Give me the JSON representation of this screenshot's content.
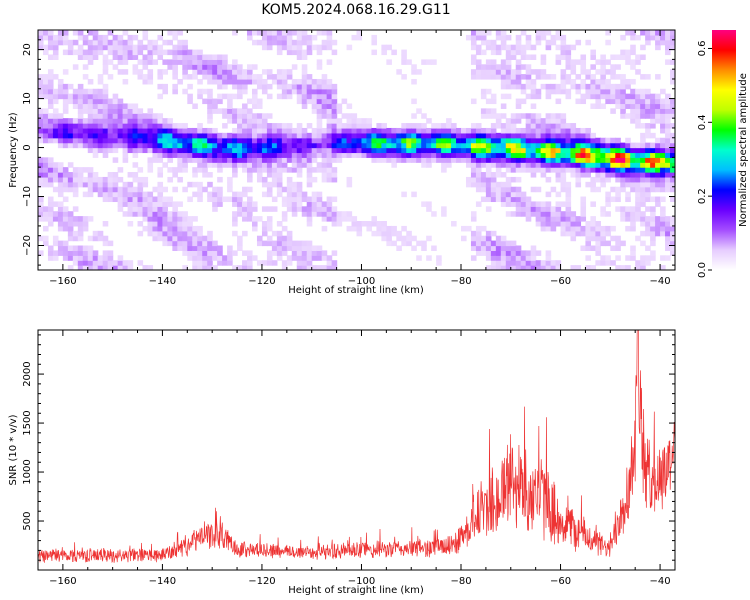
{
  "title": "KOM5.2024.068.16.29.G11",
  "colors": {
    "snr_line": "#ee3333",
    "axis": "#000000"
  },
  "colormap": [
    "#ffffff",
    "#e6ccff",
    "#a44dff",
    "#6a00ff",
    "#0000ff",
    "#00bfff",
    "#00ffcc",
    "#00ff00",
    "#bfff00",
    "#ffff00",
    "#ff8c00",
    "#ff0000",
    "#ff0080"
  ],
  "chart_data": [
    {
      "type": "heatmap",
      "xlabel": "Height of straight line (km)",
      "ylabel": "Frequency (Hz)",
      "xlim": [
        -165,
        -37
      ],
      "ylim": [
        -25,
        24
      ],
      "x_ticks": [
        -160,
        -140,
        -120,
        -100,
        -80,
        -60,
        -40
      ],
      "y_ticks": [
        -20,
        -10,
        0,
        10,
        20
      ],
      "colorbar": {
        "label": "Normalized spectral amplitude",
        "range": [
          0,
          0.65
        ],
        "ticks": [
          "0.0",
          "0.2",
          "0.4",
          "0.6"
        ]
      },
      "ridge": {
        "x": [
          -155,
          -145,
          -135,
          -125,
          -110,
          -100,
          -90,
          -80,
          -70,
          -60,
          -50,
          -40,
          -37
        ],
        "freq_hz": [
          3,
          2,
          1,
          0,
          0.5,
          1,
          1,
          0.5,
          0,
          -1,
          -2,
          -3,
          -3.5
        ],
        "peak_amplitude": [
          0.15,
          0.2,
          0.3,
          0.3,
          0.15,
          0.3,
          0.45,
          0.4,
          0.5,
          0.55,
          0.6,
          0.6,
          0.6
        ]
      }
    },
    {
      "type": "line",
      "xlabel": "Height of straight line (km)",
      "ylabel": "SNR (10 * v/v)",
      "xlim": [
        -165,
        -37
      ],
      "ylim": [
        0,
        2450
      ],
      "x_ticks": [
        -160,
        -140,
        -120,
        -100,
        -80,
        -60,
        -40
      ],
      "y_ticks": [
        500,
        1000,
        1500,
        2000
      ],
      "envelope": {
        "x": [
          -165,
          -150,
          -140,
          -135,
          -132,
          -128,
          -125,
          -120,
          -112,
          -100,
          -90,
          -82,
          -79,
          -77,
          -75,
          -73,
          -70,
          -68,
          -66,
          -64,
          -62,
          -60,
          -55,
          -50,
          -48,
          -46,
          -45,
          -44.5,
          -44,
          -43,
          -41,
          -39,
          -37
        ],
        "mean": [
          150,
          150,
          150,
          250,
          350,
          350,
          220,
          200,
          180,
          200,
          220,
          240,
          400,
          550,
          650,
          700,
          900,
          850,
          800,
          750,
          650,
          500,
          350,
          200,
          600,
          900,
          1400,
          2050,
          1600,
          1000,
          900,
          1000,
          1300
        ],
        "amp": [
          80,
          80,
          80,
          120,
          150,
          150,
          100,
          90,
          80,
          100,
          100,
          120,
          200,
          300,
          400,
          450,
          550,
          500,
          500,
          480,
          400,
          300,
          200,
          100,
          350,
          450,
          700,
          350,
          650,
          450,
          400,
          400,
          450
        ]
      }
    }
  ]
}
